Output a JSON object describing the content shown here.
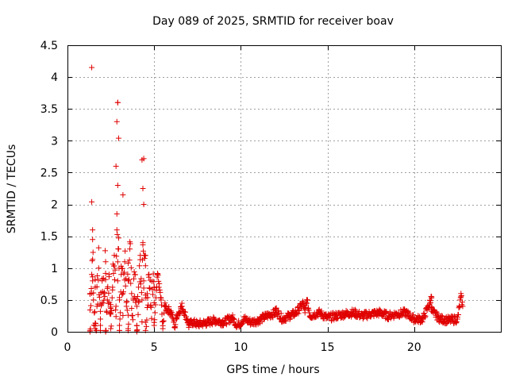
{
  "chart_data": {
    "type": "scatter",
    "title": "Day 089 of 2025, SRMTID for receiver boav",
    "xlabel": "GPS time / hours",
    "ylabel": "SRMTID / TECUs",
    "xlim": [
      0,
      25
    ],
    "ylim": [
      0,
      4.5
    ],
    "xticks": [
      0,
      5,
      10,
      15,
      20
    ],
    "yticks": [
      0,
      0.5,
      1,
      1.5,
      2,
      2.5,
      3,
      3.5,
      4,
      4.5
    ],
    "grid": true,
    "marker": "+",
    "color": "#e00000",
    "series": [
      {
        "name": "SRMTID",
        "x": [
          1.3,
          1.4,
          1.45,
          1.5,
          1.55,
          1.6,
          1.7,
          1.8,
          1.9,
          2.0,
          2.1,
          2.2,
          2.3,
          2.4,
          2.5,
          2.6,
          2.7,
          2.8,
          2.85,
          2.9,
          2.95,
          3.0,
          3.1,
          3.2,
          3.3,
          3.4,
          3.5,
          3.6,
          3.7,
          3.8,
          3.9,
          4.0,
          4.1,
          4.2,
          4.3,
          4.35,
          4.4,
          4.5,
          4.6,
          4.7,
          4.8,
          5.0,
          5.2,
          5.4,
          5.6,
          5.8,
          6.0,
          6.3,
          6.6,
          6.9,
          7.2,
          7.5,
          8.0,
          8.5,
          9.0,
          9.5,
          9.8,
          10.2,
          10.6,
          11.0,
          11.5,
          12.0,
          12.4,
          12.8,
          13.2,
          13.6,
          13.8,
          14.0,
          14.5,
          15.0,
          15.5,
          16.0,
          16.5,
          17.0,
          17.5,
          18.0,
          18.5,
          19.0,
          19.5,
          20.0,
          20.5,
          20.9,
          21.0,
          21.1,
          21.5,
          22.0,
          22.5,
          22.8,
          1.3,
          1.4,
          1.45,
          2.8,
          2.85,
          2.9,
          2.95,
          3.2,
          4.3,
          4.35,
          4.4,
          1.6,
          1.9,
          2.2,
          2.5,
          3.0,
          3.5,
          4.0,
          4.5,
          5.0,
          5.5,
          6.2,
          7.0,
          12.0,
          13.7,
          21.0,
          22.7
        ],
        "y": [
          0.6,
          0.9,
          0.8,
          0.5,
          0.3,
          0.7,
          0.4,
          1.0,
          0.2,
          0.8,
          0.6,
          1.1,
          0.5,
          0.9,
          0.3,
          0.7,
          1.2,
          0.4,
          1.6,
          0.8,
          1.3,
          0.5,
          0.9,
          0.6,
          1.1,
          0.4,
          0.8,
          1.3,
          0.6,
          0.5,
          0.9,
          0.4,
          0.7,
          1.2,
          0.5,
          1.4,
          0.8,
          1.2,
          0.6,
          0.9,
          0.4,
          0.7,
          0.9,
          0.5,
          0.4,
          0.35,
          0.3,
          0.25,
          0.4,
          0.2,
          0.15,
          0.12,
          0.14,
          0.18,
          0.15,
          0.22,
          0.1,
          0.2,
          0.15,
          0.18,
          0.25,
          0.3,
          0.2,
          0.25,
          0.3,
          0.45,
          0.5,
          0.25,
          0.3,
          0.22,
          0.25,
          0.28,
          0.3,
          0.25,
          0.28,
          0.3,
          0.25,
          0.28,
          0.3,
          0.2,
          0.2,
          0.45,
          0.55,
          0.3,
          0.2,
          0.18,
          0.2,
          0.4,
          0.0,
          2.04,
          1.6,
          2.6,
          3.3,
          3.6,
          3.04,
          2.15,
          2.7,
          2.25,
          2.0,
          0.05,
          0.1,
          0.0,
          0.05,
          0.1,
          0.05,
          0.0,
          0.15,
          0.1,
          0.05,
          0.08,
          0.1,
          0.35,
          0.3,
          0.35,
          0.55
        ],
        "x_extra": [
          1.4,
          2.9,
          2.9,
          4.4
        ],
        "y_extra": [
          4.15,
          3.6,
          2.3,
          2.72
        ]
      }
    ]
  }
}
